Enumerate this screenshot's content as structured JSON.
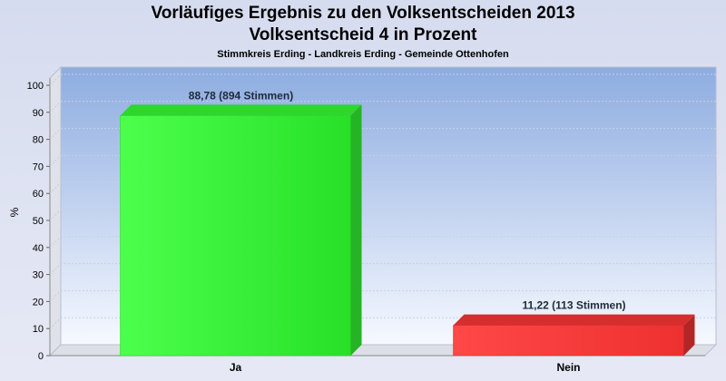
{
  "chart_data": {
    "type": "bar",
    "title": "Vorläufiges Ergebnis zu den Volksentscheiden 2013",
    "subtitle_line": "Volksentscheid 4 in Prozent",
    "subtitle": "Stimmkreis Erding - Landkreis Erding - Gemeinde Ottenhofen",
    "ylabel": "%",
    "xlabel": "",
    "categories": [
      "Ja",
      "Nein"
    ],
    "values": [
      88.78,
      11.22
    ],
    "data_labels": [
      "88,78 (894 Stimmen)",
      "11,22 (113 Stimmen)"
    ],
    "colors": [
      "#33ee33",
      "#ee3333"
    ],
    "ylim": [
      0,
      100
    ],
    "yticks": [
      "0",
      "10",
      "20",
      "30",
      "40",
      "50",
      "60",
      "70",
      "80",
      "90",
      "100"
    ],
    "grid": true,
    "legend": "none"
  }
}
